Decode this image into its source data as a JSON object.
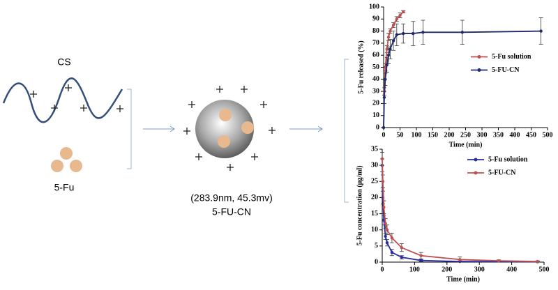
{
  "diagram": {
    "polymer_label": "CS",
    "drug_label": "5-Fu",
    "particle_size": "(283.9nm, 45.3mv)",
    "particle_label": "5-FU-CN"
  },
  "chart_data": [
    {
      "type": "line",
      "x_label": "Time (min)",
      "y_label": "5-Fu released (%)",
      "xlim": [
        0,
        500
      ],
      "ylim": [
        0,
        100
      ],
      "xticks": [
        0,
        50,
        100,
        150,
        200,
        250,
        300,
        350,
        400,
        450,
        500
      ],
      "yticks": [
        0,
        10,
        20,
        30,
        40,
        50,
        60,
        70,
        80,
        90,
        100
      ],
      "legend": "center right",
      "series": [
        {
          "name": "5-Fu solution",
          "color": "#c0504d",
          "x": [
            0,
            2,
            5,
            10,
            15,
            20,
            30,
            40,
            50,
            60
          ],
          "values": [
            0,
            30,
            50,
            65,
            75,
            80,
            85,
            90,
            93,
            96
          ],
          "errors": [
            0,
            3,
            3,
            3,
            3,
            2,
            2,
            2,
            2,
            1
          ]
        },
        {
          "name": "5-FU-CN",
          "color": "#1f2a6b",
          "x": [
            0,
            2,
            5,
            10,
            15,
            20,
            30,
            40,
            60,
            90,
            120,
            240,
            480
          ],
          "values": [
            0,
            25,
            40,
            52,
            60,
            65,
            72,
            77,
            78,
            78,
            79,
            79,
            80
          ],
          "errors": [
            0,
            5,
            5,
            6,
            7,
            8,
            8,
            9,
            8,
            10,
            10,
            10,
            11
          ]
        }
      ]
    },
    {
      "type": "line",
      "x_label": "Time (min)",
      "y_label": "5-Fu concentration (μg/ml)",
      "xlim": [
        0,
        500
      ],
      "ylim": [
        0,
        35
      ],
      "xticks": [
        0,
        100,
        200,
        300,
        400,
        500
      ],
      "yticks": [
        0,
        5,
        10,
        15,
        20,
        25,
        30,
        35
      ],
      "legend": "upper right",
      "series": [
        {
          "name": "5-Fu solution",
          "color": "#2b2ba8",
          "x": [
            0,
            2,
            5,
            10,
            15,
            30,
            60,
            120,
            240,
            480
          ],
          "values": [
            30,
            20,
            13,
            8,
            6,
            3,
            1.5,
            0.5,
            0.2,
            0.1
          ],
          "errors": [
            2,
            2,
            1.5,
            1,
            1,
            1,
            0.5,
            0.3,
            0.2,
            0.1
          ]
        },
        {
          "name": "5-FU-CN",
          "color": "#c0504d",
          "x": [
            0,
            2,
            5,
            10,
            15,
            30,
            60,
            120,
            240,
            360,
            480
          ],
          "values": [
            32,
            25,
            17,
            12,
            10,
            7.5,
            4.5,
            2,
            0.8,
            0.4,
            0.2
          ],
          "errors": [
            2,
            2,
            2,
            1.5,
            1.5,
            1.5,
            1.2,
            1,
            0.8,
            0.3,
            0.2
          ]
        }
      ]
    }
  ]
}
